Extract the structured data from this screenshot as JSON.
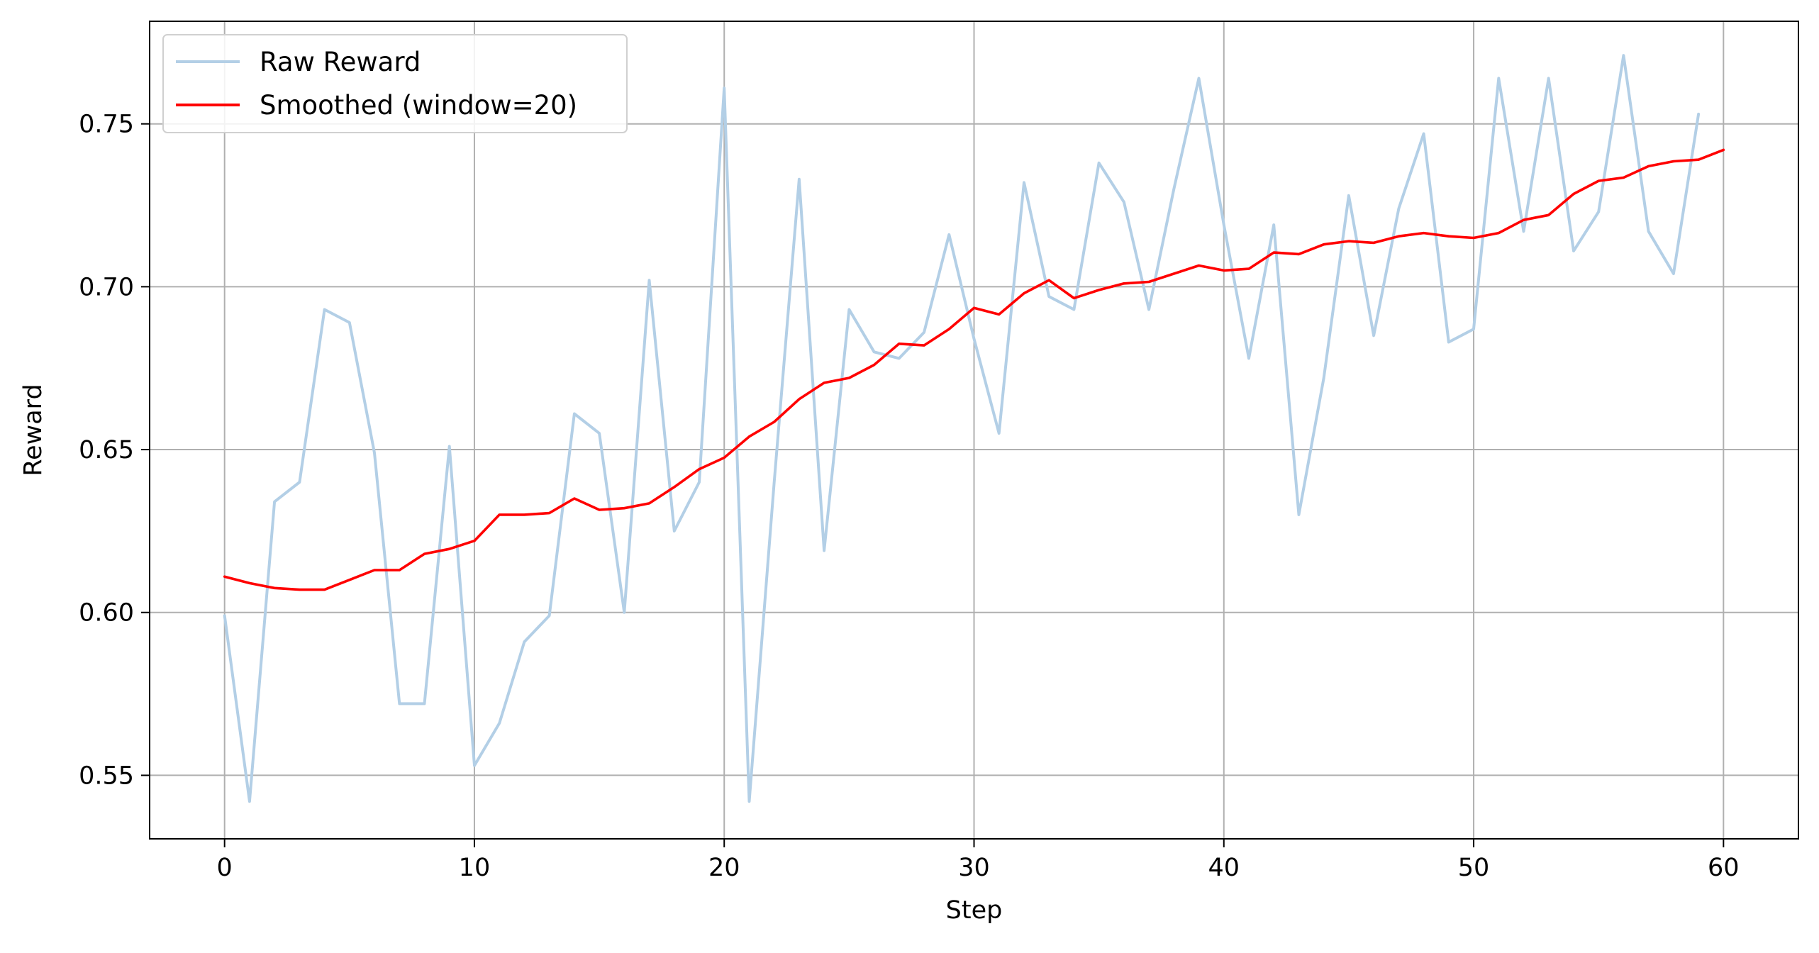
{
  "chart_data": {
    "type": "line",
    "title": "",
    "xlabel": "Step",
    "ylabel": "Reward",
    "xlim": [
      -3,
      63
    ],
    "ylim": [
      0.5305,
      0.7815
    ],
    "xticks": [
      0,
      10,
      20,
      30,
      40,
      50,
      60
    ],
    "yticks": [
      0.55,
      0.6,
      0.65,
      0.7,
      0.75
    ],
    "xtick_labels": [
      "0",
      "10",
      "20",
      "30",
      "40",
      "50",
      "60"
    ],
    "ytick_labels": [
      "0.55",
      "0.60",
      "0.65",
      "0.70",
      "0.75"
    ],
    "grid": true,
    "legend_position": "top-left",
    "series": [
      {
        "name": "Raw Reward",
        "color": "#b3cfe6",
        "x": [
          0,
          1,
          2,
          3,
          4,
          5,
          6,
          7,
          8,
          9,
          10,
          11,
          12,
          13,
          14,
          15,
          16,
          17,
          18,
          19,
          20,
          21,
          22,
          23,
          24,
          25,
          26,
          27,
          28,
          29,
          30,
          31,
          32,
          33,
          34,
          35,
          36,
          37,
          38,
          39,
          40,
          41,
          42,
          43,
          44,
          45,
          46,
          47,
          48,
          49,
          50,
          51,
          52,
          53,
          54,
          55,
          56,
          57,
          58,
          59
        ],
        "values": [
          0.599,
          0.542,
          0.634,
          0.64,
          0.693,
          0.689,
          0.649,
          0.572,
          0.572,
          0.651,
          0.553,
          0.566,
          0.591,
          0.599,
          0.661,
          0.655,
          0.6,
          0.702,
          0.625,
          0.64,
          0.761,
          0.542,
          0.64,
          0.733,
          0.619,
          0.693,
          0.68,
          0.678,
          0.686,
          0.716,
          0.684,
          0.655,
          0.732,
          0.697,
          0.693,
          0.738,
          0.726,
          0.693,
          0.73,
          0.764,
          0.719,
          0.678,
          0.719,
          0.63,
          0.672,
          0.728,
          0.685,
          0.724,
          0.747,
          0.683,
          0.687,
          0.764,
          0.717,
          0.764,
          0.711,
          0.723,
          0.771,
          0.717,
          0.704,
          0.753
        ]
      },
      {
        "name": "Smoothed (window=20)",
        "color": "#ff0000",
        "x": [
          0,
          1,
          2,
          3,
          4,
          5,
          6,
          7,
          8,
          9,
          10,
          11,
          12,
          13,
          14,
          15,
          16,
          17,
          18,
          19,
          20,
          21,
          22,
          23,
          24,
          25,
          26,
          27,
          28,
          29,
          30,
          31,
          32,
          33,
          34,
          35,
          36,
          37,
          38,
          39,
          40,
          41,
          42,
          43,
          44,
          45,
          46,
          47,
          48,
          49,
          50,
          51,
          52,
          53,
          54,
          55,
          56,
          57,
          58,
          59,
          60
        ],
        "values": [
          0.611,
          0.609,
          0.6075,
          0.607,
          0.607,
          0.61,
          0.613,
          0.613,
          0.618,
          0.6195,
          0.622,
          0.63,
          0.63,
          0.6305,
          0.635,
          0.6315,
          0.632,
          0.6335,
          0.6385,
          0.644,
          0.6475,
          0.654,
          0.6585,
          0.6655,
          0.6705,
          0.672,
          0.676,
          0.6825,
          0.682,
          0.687,
          0.6935,
          0.6915,
          0.698,
          0.702,
          0.6965,
          0.699,
          0.701,
          0.7015,
          0.704,
          0.7065,
          0.705,
          0.7055,
          0.7105,
          0.71,
          0.713,
          0.714,
          0.7135,
          0.7155,
          0.7165,
          0.7155,
          0.715,
          0.7165,
          0.7205,
          0.722,
          0.7285,
          0.7325,
          0.7335,
          0.737,
          0.7385,
          0.739,
          0.742
        ]
      }
    ]
  }
}
